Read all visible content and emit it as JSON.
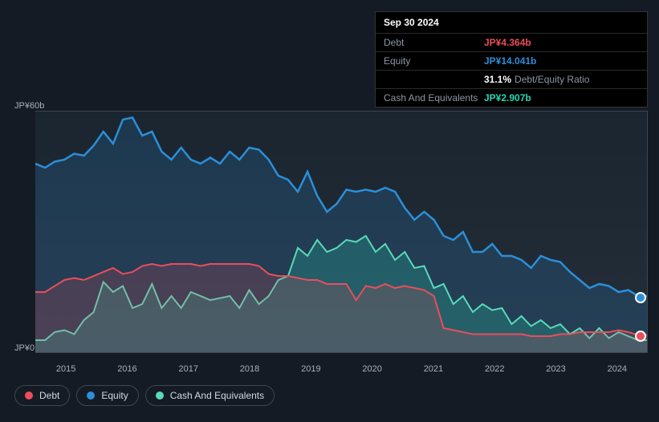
{
  "tooltip": {
    "date": "Sep 30 2024",
    "rows": [
      {
        "label": "Debt",
        "value": "JP¥4.364b",
        "color": "#eb4d5c",
        "extra": ""
      },
      {
        "label": "Equity",
        "value": "JP¥14.041b",
        "color": "#2b8fd8",
        "extra": ""
      },
      {
        "label": "",
        "value": "31.1%",
        "color": "#ffffff",
        "extra": "Debt/Equity Ratio"
      },
      {
        "label": "Cash And Equivalents",
        "value": "JP¥2.907b",
        "color": "#29d6b2",
        "extra": ""
      }
    ]
  },
  "chart": {
    "type": "area",
    "background_color": "#151b24",
    "grid_color": "#3c4653",
    "ymax": 60,
    "ymin": 0,
    "ylabel_top": "JP¥60b",
    "ylabel_bottom": "JP¥0",
    "xticks": [
      "2015",
      "2016",
      "2017",
      "2018",
      "2019",
      "2020",
      "2021",
      "2022",
      "2023",
      "2024"
    ],
    "label_fontsize": 11,
    "label_color": "#a5b1c0",
    "series": [
      {
        "name": "Equity",
        "stroke": "#2b8fd8",
        "fill": "#2b8fd830",
        "stroke_width": 2.5,
        "y": [
          47,
          46,
          47.5,
          48,
          49.5,
          49,
          51.5,
          55,
          52,
          58,
          58.5,
          54,
          55,
          50,
          48,
          51,
          48,
          47,
          48.5,
          47,
          50,
          48,
          51,
          50.5,
          48,
          44,
          43,
          40,
          45,
          39,
          35,
          37,
          40.5,
          40,
          40.5,
          40,
          41,
          40,
          36,
          33,
          35,
          33,
          29,
          28,
          30,
          25,
          25,
          27,
          24,
          24,
          23,
          21,
          24,
          23,
          22.5,
          20,
          18,
          16,
          17,
          16.5,
          15,
          15.5,
          14,
          14
        ]
      },
      {
        "name": "Cash And Equivalents",
        "stroke": "#58dabb",
        "fill": "#29d6b238",
        "stroke_width": 2,
        "y": [
          3,
          3,
          5,
          5.5,
          4.5,
          8,
          10,
          17.5,
          15,
          16.5,
          11,
          12,
          17,
          11,
          14,
          11,
          15,
          14,
          13,
          13.5,
          14,
          11,
          15.5,
          12,
          14,
          18,
          19,
          26,
          24,
          28,
          25,
          26,
          28,
          27.5,
          29,
          25,
          27,
          23,
          25,
          21,
          21.5,
          16,
          17,
          12,
          14,
          10,
          12,
          10.5,
          11,
          7,
          9,
          6.5,
          8,
          6,
          7,
          4.5,
          6,
          3.5,
          6,
          3.5,
          5,
          4,
          3,
          3
        ]
      },
      {
        "name": "Debt",
        "stroke": "#eb4d5c",
        "fill": "#eb4d5c30",
        "stroke_width": 2,
        "y": [
          15,
          15,
          16.5,
          18,
          18.5,
          18,
          19,
          20,
          21,
          19.5,
          20,
          21.5,
          22,
          21.5,
          22,
          22,
          22,
          21.5,
          22,
          22,
          22,
          22,
          22,
          21.5,
          19.5,
          19,
          19,
          18.5,
          18,
          18,
          17,
          17,
          17,
          13,
          16.5,
          16,
          17,
          16,
          16.5,
          16,
          15.5,
          14,
          6,
          5.5,
          5,
          4.5,
          4.5,
          4.5,
          4.5,
          4.5,
          4.5,
          4,
          4,
          4,
          4.5,
          4.5,
          5,
          5,
          5,
          5,
          5.5,
          5,
          4.3,
          4.3
        ]
      }
    ],
    "markers": [
      {
        "color": "#2b8fd8",
        "y": 14
      },
      {
        "color": "#eb4d5c",
        "y": 4.3
      }
    ]
  },
  "legend": [
    {
      "label": "Debt",
      "color": "#eb4d5c"
    },
    {
      "label": "Equity",
      "color": "#2b8fd8"
    },
    {
      "label": "Cash And Equivalents",
      "color": "#58dabb"
    }
  ]
}
